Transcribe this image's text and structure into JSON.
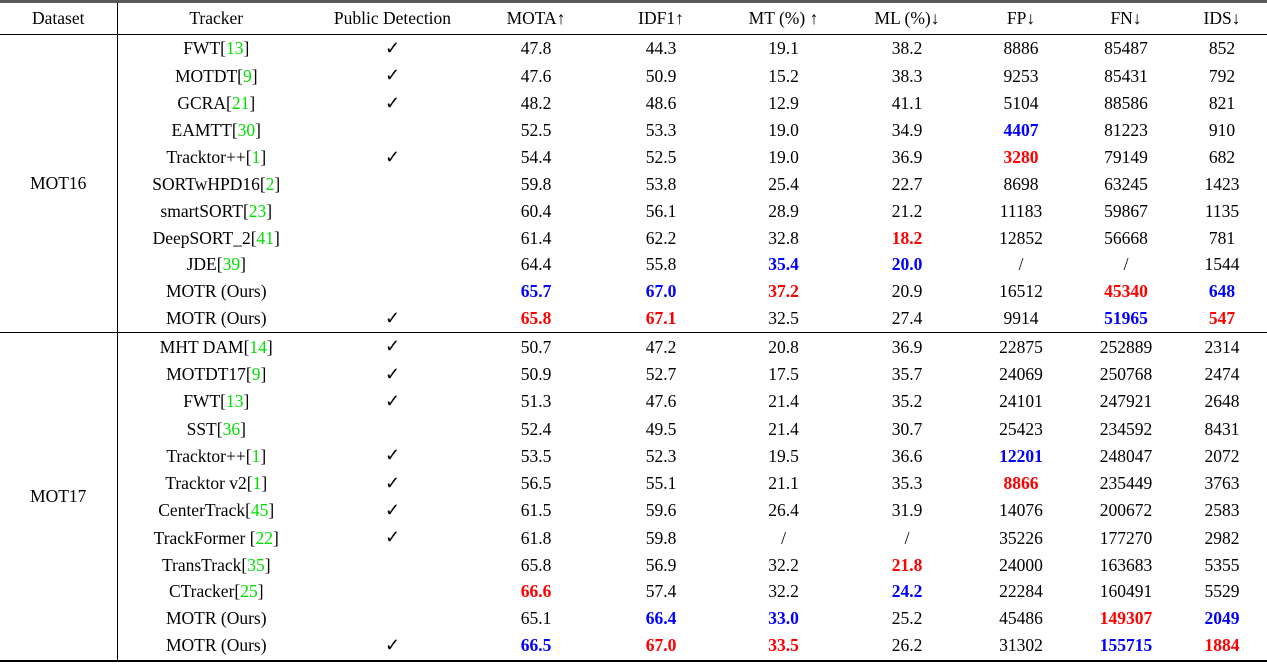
{
  "colors": {
    "citation": "#00E000",
    "best_red": "#FF0000",
    "second_blue": "#0000FF",
    "text": "#000000"
  },
  "symbols": {
    "check": "✓",
    "missing": "/"
  },
  "table": {
    "headers": [
      "Dataset",
      "Tracker",
      "Public Detection",
      "MOTA↑",
      "IDF1↑",
      "MT (%) ↑",
      "ML (%)↓",
      "FP↓",
      "FN↓",
      "IDS↓"
    ],
    "sections": [
      {
        "dataset": "MOT16",
        "rows": [
          {
            "name": "FWT",
            "cite": "13",
            "pub": true,
            "cells": [
              [
                "47.8"
              ],
              [
                "44.3"
              ],
              [
                "19.1"
              ],
              [
                "38.2"
              ],
              [
                "8886"
              ],
              [
                "85487"
              ],
              [
                "852"
              ]
            ]
          },
          {
            "name": "MOTDT",
            "cite": "9",
            "pub": true,
            "cells": [
              [
                "47.6"
              ],
              [
                "50.9"
              ],
              [
                "15.2"
              ],
              [
                "38.3"
              ],
              [
                "9253"
              ],
              [
                "85431"
              ],
              [
                "792"
              ]
            ]
          },
          {
            "name": "GCRA",
            "cite": "21",
            "pub": true,
            "cells": [
              [
                "48.2"
              ],
              [
                "48.6"
              ],
              [
                "12.9"
              ],
              [
                "41.1"
              ],
              [
                "5104"
              ],
              [
                "88586"
              ],
              [
                "821"
              ]
            ]
          },
          {
            "name": "EAMTT",
            "cite": "30",
            "pub": false,
            "cells": [
              [
                "52.5"
              ],
              [
                "53.3"
              ],
              [
                "19.0"
              ],
              [
                "34.9"
              ],
              [
                "4407",
                "b"
              ],
              [
                "81223"
              ],
              [
                "910"
              ]
            ]
          },
          {
            "name": "Tracktor++",
            "cite": "1",
            "pub": true,
            "cells": [
              [
                "54.4"
              ],
              [
                "52.5"
              ],
              [
                "19.0"
              ],
              [
                "36.9"
              ],
              [
                "3280",
                "r"
              ],
              [
                "79149"
              ],
              [
                "682"
              ]
            ]
          },
          {
            "name": "SORTwHPD16",
            "cite": "2",
            "pub": false,
            "cells": [
              [
                "59.8"
              ],
              [
                "53.8"
              ],
              [
                "25.4"
              ],
              [
                "22.7"
              ],
              [
                "8698"
              ],
              [
                "63245"
              ],
              [
                "1423"
              ]
            ]
          },
          {
            "name": "smartSORT",
            "cite": "23",
            "pub": false,
            "cells": [
              [
                "60.4"
              ],
              [
                "56.1"
              ],
              [
                "28.9"
              ],
              [
                "21.2"
              ],
              [
                "11183"
              ],
              [
                "59867"
              ],
              [
                "1135"
              ]
            ]
          },
          {
            "name": "DeepSORT_2",
            "cite": "41",
            "pub": false,
            "cells": [
              [
                "61.4"
              ],
              [
                "62.2"
              ],
              [
                "32.8"
              ],
              [
                "18.2",
                "r"
              ],
              [
                "12852"
              ],
              [
                "56668"
              ],
              [
                "781"
              ]
            ]
          },
          {
            "name": "JDE",
            "cite": "39",
            "pub": false,
            "cells": [
              [
                "64.4"
              ],
              [
                "55.8"
              ],
              [
                "35.4",
                "b"
              ],
              [
                "20.0",
                "b"
              ],
              [
                "/"
              ],
              [
                "/"
              ],
              [
                "1544"
              ]
            ]
          },
          {
            "name": "MOTR (Ours)",
            "cite": null,
            "pub": false,
            "cells": [
              [
                "65.7",
                "b"
              ],
              [
                "67.0",
                "b"
              ],
              [
                "37.2",
                "r"
              ],
              [
                "20.9"
              ],
              [
                "16512"
              ],
              [
                "45340",
                "r"
              ],
              [
                "648",
                "b"
              ]
            ]
          },
          {
            "name": "MOTR (Ours)",
            "cite": null,
            "pub": true,
            "cells": [
              [
                "65.8",
                "r"
              ],
              [
                "67.1",
                "r"
              ],
              [
                "32.5"
              ],
              [
                "27.4"
              ],
              [
                "9914"
              ],
              [
                "51965",
                "b"
              ],
              [
                "547",
                "r"
              ]
            ]
          }
        ]
      },
      {
        "dataset": "MOT17",
        "rows": [
          {
            "name": "MHT DAM",
            "cite": "14",
            "pub": true,
            "cells": [
              [
                "50.7"
              ],
              [
                "47.2"
              ],
              [
                "20.8"
              ],
              [
                "36.9"
              ],
              [
                "22875"
              ],
              [
                "252889"
              ],
              [
                "2314"
              ]
            ]
          },
          {
            "name": "MOTDT17",
            "cite": "9",
            "pub": true,
            "cells": [
              [
                "50.9"
              ],
              [
                "52.7"
              ],
              [
                "17.5"
              ],
              [
                "35.7"
              ],
              [
                "24069"
              ],
              [
                "250768"
              ],
              [
                "2474"
              ]
            ]
          },
          {
            "name": "FWT",
            "cite": "13",
            "pub": true,
            "cells": [
              [
                "51.3"
              ],
              [
                "47.6"
              ],
              [
                "21.4"
              ],
              [
                "35.2"
              ],
              [
                "24101"
              ],
              [
                "247921"
              ],
              [
                "2648"
              ]
            ]
          },
          {
            "name": "SST",
            "cite": "36",
            "pub": false,
            "cells": [
              [
                "52.4"
              ],
              [
                "49.5"
              ],
              [
                "21.4"
              ],
              [
                "30.7"
              ],
              [
                "25423"
              ],
              [
                "234592"
              ],
              [
                "8431"
              ]
            ]
          },
          {
            "name": "Tracktor++",
            "cite": "1",
            "pub": true,
            "cells": [
              [
                "53.5"
              ],
              [
                "52.3"
              ],
              [
                "19.5"
              ],
              [
                "36.6"
              ],
              [
                "12201",
                "b"
              ],
              [
                "248047"
              ],
              [
                "2072"
              ]
            ]
          },
          {
            "name": "Tracktor v2",
            "cite": "1",
            "pub": true,
            "cells": [
              [
                "56.5"
              ],
              [
                "55.1"
              ],
              [
                "21.1"
              ],
              [
                "35.3"
              ],
              [
                "8866",
                "r"
              ],
              [
                "235449"
              ],
              [
                "3763"
              ]
            ]
          },
          {
            "name": "CenterTrack",
            "cite": "45",
            "pub": true,
            "cells": [
              [
                "61.5"
              ],
              [
                "59.6"
              ],
              [
                "26.4"
              ],
              [
                "31.9"
              ],
              [
                "14076"
              ],
              [
                "200672"
              ],
              [
                "2583"
              ]
            ]
          },
          {
            "name": "TrackFormer ",
            "cite": "22",
            "pub": true,
            "cells": [
              [
                "61.8"
              ],
              [
                "59.8"
              ],
              [
                "/"
              ],
              [
                "/"
              ],
              [
                "35226"
              ],
              [
                "177270"
              ],
              [
                "2982"
              ]
            ]
          },
          {
            "name": "TransTrack",
            "cite": "35",
            "pub": false,
            "cells": [
              [
                "65.8"
              ],
              [
                "56.9"
              ],
              [
                "32.2"
              ],
              [
                "21.8",
                "r"
              ],
              [
                "24000"
              ],
              [
                "163683"
              ],
              [
                "5355"
              ]
            ]
          },
          {
            "name": "CTracker",
            "cite": "25",
            "pub": false,
            "cells": [
              [
                "66.6",
                "r"
              ],
              [
                "57.4"
              ],
              [
                "32.2"
              ],
              [
                "24.2",
                "b"
              ],
              [
                "22284"
              ],
              [
                "160491"
              ],
              [
                "5529"
              ]
            ]
          },
          {
            "name": "MOTR (Ours)",
            "cite": null,
            "pub": false,
            "cells": [
              [
                "65.1"
              ],
              [
                "66.4",
                "b"
              ],
              [
                "33.0",
                "b"
              ],
              [
                "25.2"
              ],
              [
                "45486"
              ],
              [
                "149307",
                "r"
              ],
              [
                "2049",
                "b"
              ]
            ]
          },
          {
            "name": "MOTR (Ours)",
            "cite": null,
            "pub": true,
            "cells": [
              [
                "66.5",
                "b"
              ],
              [
                "67.0",
                "r"
              ],
              [
                "33.5",
                "r"
              ],
              [
                "26.2"
              ],
              [
                "31302"
              ],
              [
                "155715",
                "b"
              ],
              [
                "1884",
                "r"
              ]
            ]
          }
        ]
      }
    ]
  }
}
